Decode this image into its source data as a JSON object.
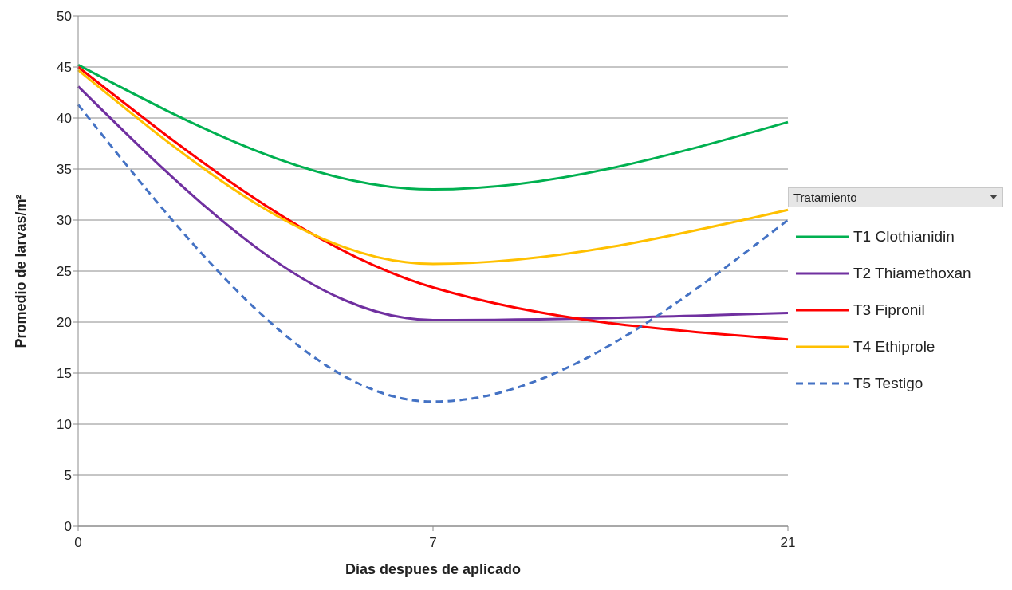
{
  "chart_data": {
    "type": "line",
    "xlabel": "Días despues de aplicado",
    "ylabel": "Promedio de larvas/m²",
    "legend_title": "Tratamiento",
    "categories": [
      "0",
      "7",
      "21"
    ],
    "series": [
      {
        "name": "T1 Clothianidin",
        "color": "#00b050",
        "values": [
          45.2,
          33.0,
          39.6
        ],
        "line_style": "solid"
      },
      {
        "name": "T2 Thiamethoxan",
        "color": "#7030a0",
        "values": [
          43.1,
          20.2,
          20.9
        ],
        "line_style": "solid"
      },
      {
        "name": "T3 Fipronil",
        "color": "#ff0000",
        "values": [
          45.0,
          23.4,
          18.3
        ],
        "line_style": "solid"
      },
      {
        "name": "T4 Ethiprole",
        "color": "#ffc000",
        "values": [
          44.7,
          25.7,
          31.0
        ],
        "line_style": "solid"
      },
      {
        "name": "T5 Testigo",
        "color": "#4472c4",
        "values": [
          41.3,
          12.2,
          30.0
        ],
        "line_style": "dashed"
      }
    ],
    "ylim": [
      0,
      50
    ],
    "yticks": [
      0,
      5,
      10,
      15,
      20,
      25,
      30,
      35,
      40,
      45,
      50
    ],
    "grid": "y",
    "legend": "right",
    "marker": "none"
  }
}
